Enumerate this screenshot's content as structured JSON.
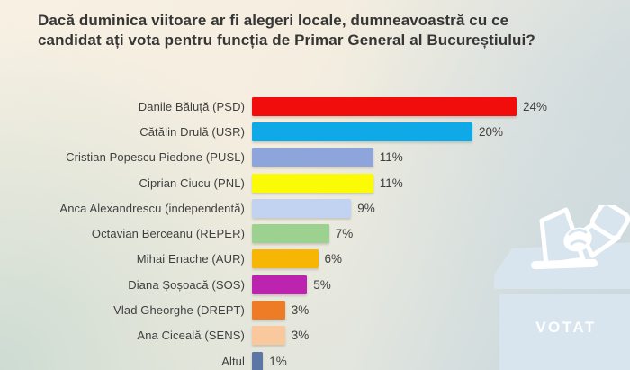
{
  "title": {
    "line1": "Dacă duminica viitoare ar fi alegeri locale, dumneavoastră cu ce",
    "line2": "candidat ați vota pentru funcția de Primar General al Bucureștiului?"
  },
  "chart_data": {
    "type": "bar",
    "orientation": "horizontal",
    "title": "Dacă duminica viitoare ar fi alegeri locale, dumneavoastră cu ce candidat ați vota pentru funcția de Primar General al Bucureștiului?",
    "categories": [
      "Danile Băluță (PSD)",
      "Cătălin Drulă (USR)",
      "Cristian Popescu Piedone (PUSL)",
      "Ciprian Ciucu (PNL)",
      "Anca Alexandrescu (independentă)",
      "Octavian Berceanu (REPER)",
      "Mihai Enache (AUR)",
      "Diana Șoșoacă (SOS)",
      "Vlad Gheorghe (DREPT)",
      "Ana Ciceală (SENS)",
      "Altul"
    ],
    "values": [
      24,
      20,
      11,
      11,
      9,
      7,
      6,
      5,
      3,
      3,
      1
    ],
    "value_labels": [
      "24%",
      "20%",
      "11%",
      "11%",
      "9%",
      "7%",
      "6%",
      "5%",
      "3%",
      "3%",
      "1%"
    ],
    "bar_colors": [
      "#f20d0d",
      "#0fa9e8",
      "#8ea5dc",
      "#fbfb05",
      "#c1d3f1",
      "#9cd18f",
      "#f6b603",
      "#bc24b0",
      "#ee7b26",
      "#f9c89c",
      "#5c76a5"
    ],
    "xlim": [
      0,
      25
    ],
    "gridlines": false,
    "legend": false,
    "value_label_position": "right-of-bar"
  },
  "ballot_graphic": {
    "label": "VOTAT",
    "icon": "ballot-box-with-hand-icon",
    "box_color": "#d8e5ee",
    "label_color": "#ffffff"
  },
  "style_colors": {
    "background_top": "#f8f1e3",
    "background_bottom": "#cfdbda",
    "text": "#3f3f3f",
    "title_text": "#363636"
  }
}
